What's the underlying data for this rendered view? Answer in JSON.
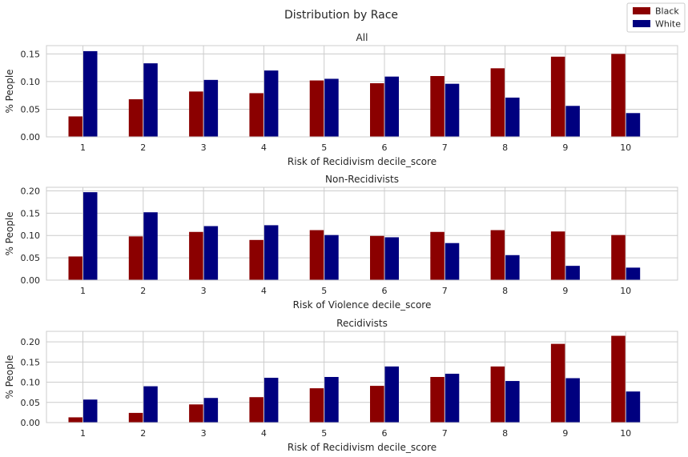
{
  "colors": {
    "Black": "#8b0000",
    "White": "#00007f"
  },
  "chart_data": {
    "suptitle": "Distribution by Race",
    "legend": {
      "placement": "top-right",
      "entries": [
        "Black",
        "White"
      ]
    },
    "panels": [
      {
        "type": "bar",
        "title": "All",
        "xlabel": "Risk of Recidivism decile_score",
        "ylabel": "% People",
        "categories": [
          "1",
          "2",
          "3",
          "4",
          "5",
          "6",
          "7",
          "8",
          "9",
          "10"
        ],
        "ylim": [
          0,
          0.165
        ],
        "yticks": [
          "0.00",
          "0.05",
          "0.10",
          "0.15"
        ],
        "grid": true,
        "series": [
          {
            "name": "Black",
            "values": [
              0.037,
              0.068,
              0.082,
              0.079,
              0.102,
              0.097,
              0.11,
              0.124,
              0.145,
              0.15
            ]
          },
          {
            "name": "White",
            "values": [
              0.155,
              0.133,
              0.103,
              0.12,
              0.105,
              0.109,
              0.096,
              0.071,
              0.056,
              0.043
            ]
          }
        ]
      },
      {
        "type": "bar",
        "title": "Non-Recidivists",
        "xlabel": "Risk of Violence decile_score",
        "ylabel": "% People",
        "categories": [
          "1",
          "2",
          "3",
          "4",
          "5",
          "6",
          "7",
          "8",
          "9",
          "10"
        ],
        "ylim": [
          0,
          0.208
        ],
        "yticks": [
          "0.00",
          "0.05",
          "0.10",
          "0.15",
          "0.20"
        ],
        "grid": true,
        "series": [
          {
            "name": "Black",
            "values": [
              0.053,
              0.098,
              0.108,
              0.09,
              0.112,
              0.099,
              0.108,
              0.112,
              0.109,
              0.101
            ]
          },
          {
            "name": "White",
            "values": [
              0.197,
              0.152,
              0.121,
              0.123,
              0.101,
              0.096,
              0.083,
              0.056,
              0.032,
              0.028
            ]
          }
        ]
      },
      {
        "type": "bar",
        "title": "Recidivists",
        "xlabel": "Risk of Recidivism decile_score",
        "ylabel": "% People",
        "categories": [
          "1",
          "2",
          "3",
          "4",
          "5",
          "6",
          "7",
          "8",
          "9",
          "10"
        ],
        "ylim": [
          0,
          0.226
        ],
        "yticks": [
          "0.00",
          "0.05",
          "0.10",
          "0.15",
          "0.20"
        ],
        "grid": true,
        "series": [
          {
            "name": "Black",
            "values": [
              0.013,
              0.024,
              0.045,
              0.063,
              0.085,
              0.091,
              0.113,
              0.139,
              0.195,
              0.215
            ]
          },
          {
            "name": "White",
            "values": [
              0.057,
              0.09,
              0.061,
              0.111,
              0.113,
              0.139,
              0.121,
              0.103,
              0.11,
              0.077
            ]
          }
        ]
      }
    ]
  }
}
